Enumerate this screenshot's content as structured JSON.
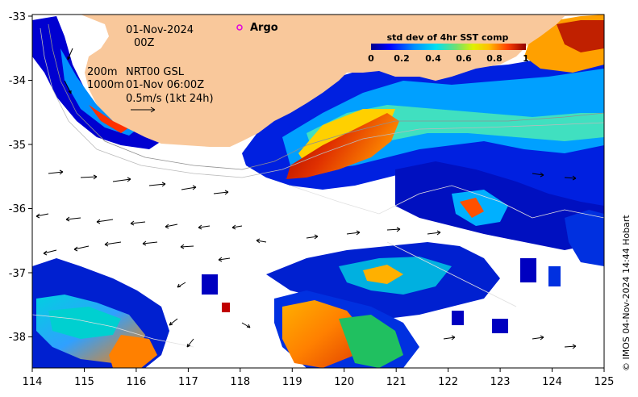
{
  "title": {
    "date": "01-Nov-2024",
    "time": "00Z"
  },
  "argo_label": "Argo",
  "annotation": {
    "depth_200": "200m",
    "depth_1000": "1000m",
    "product": "NRT00 GSL",
    "valid": "01-Nov 06:00Z",
    "scale": "0.5m/s (1kt 24h)"
  },
  "colorbar": {
    "title": "std dev of 4hr SST comp",
    "ticks": [
      "0",
      "0.2",
      "0.4",
      "0.6",
      "0.8",
      "1"
    ]
  },
  "credit": "© IMOS 04-Nov-2024 14:44 Hobart",
  "axes": {
    "x_ticks": [
      "114",
      "115",
      "116",
      "117",
      "118",
      "119",
      "120",
      "121",
      "122",
      "123",
      "124",
      "125"
    ],
    "y_ticks": [
      "-33",
      "-34",
      "-35",
      "-36",
      "-37",
      "-38"
    ],
    "x_range": [
      114,
      125
    ],
    "y_range": [
      -38.5,
      -33
    ]
  },
  "colors": {
    "land": "#f9c89b",
    "ocean_nodata": "#ffffff",
    "cmap": [
      "#00008b",
      "#0000ff",
      "#0080ff",
      "#00d0ff",
      "#40e0a0",
      "#a0e040",
      "#ffff00",
      "#ffb000",
      "#ff4000",
      "#a00000"
    ]
  }
}
